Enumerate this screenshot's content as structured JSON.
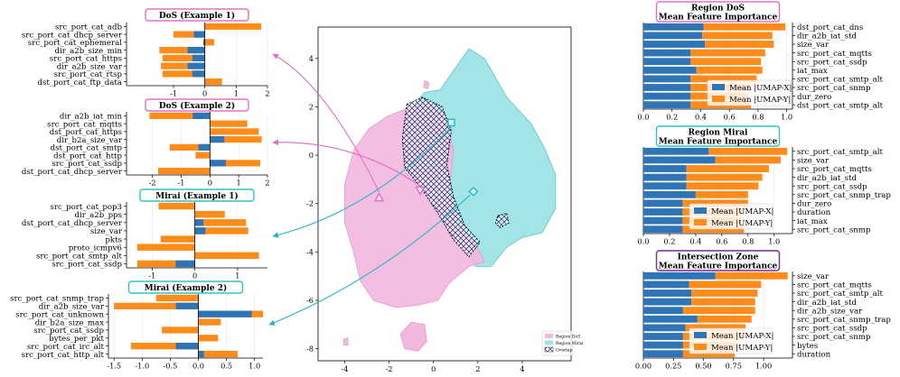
{
  "colors": {
    "umap_x": "#2f75b5",
    "umap_y": "#ff8c1a",
    "dos_border": "#e070c8",
    "mirai_border": "#2fc3c8",
    "intersection_border": "#7a2a8a",
    "region_dos_fill": "#f2b8de",
    "region_mirai_fill": "#9ee4e6",
    "overlap_hatch": "#1a2a6a",
    "arrow_dos": "#e070c8",
    "arrow_mirai": "#22b8c4"
  },
  "chart_data": [
    {
      "type": "bar",
      "orientation": "horizontal",
      "stacked": true,
      "title": "DoS (Example 1)",
      "categories": [
        "src_port_cat_adb",
        "src_port_cat_dhcp_server",
        "src_port_cat_ephemeral",
        "dir_a2b_size_min",
        "src_port_cat_https",
        "dir_a2b_size_var",
        "src_port_cat_rtsp",
        "dst_port_cat_ftp_data"
      ],
      "series": [
        {
          "values": [
            0.0,
            -0.35,
            -0.05,
            -0.55,
            -0.4,
            -0.55,
            -0.4,
            0.0
          ]
        },
        {
          "values": [
            1.8,
            -0.65,
            0.35,
            -0.9,
            -0.95,
            -0.85,
            -0.95,
            0.55
          ]
        }
      ],
      "xlim": [
        -2.5,
        2.0
      ],
      "xticks": [
        "-1",
        "0",
        "1",
        "2"
      ],
      "xtick_values": [
        -1,
        0,
        1,
        2
      ]
    },
    {
      "type": "bar",
      "orientation": "horizontal",
      "stacked": true,
      "title": "DoS (Example 2)",
      "categories": [
        "dir_a2b_iat_min",
        "src_port_cat_mqtts",
        "dst_port_cat_https",
        "dir_b2a_size_var",
        "dst_port_cat_smtp",
        "dst_port_cat_http",
        "src_port_cat_ssdp",
        "dst_port_cat_dhcp_server"
      ],
      "series": [
        {
          "values": [
            -0.6,
            0.0,
            0.0,
            0.5,
            -0.4,
            0.0,
            0.55,
            0.0
          ]
        },
        {
          "values": [
            -1.5,
            1.3,
            1.7,
            1.3,
            -1.0,
            -0.5,
            1.2,
            -1.8
          ]
        }
      ],
      "xlim": [
        -2.9,
        2.0
      ],
      "xticks": [
        "-2",
        "-1",
        "0",
        "1",
        "2"
      ],
      "xtick_values": [
        -2,
        -1,
        0,
        1,
        2
      ]
    },
    {
      "type": "bar",
      "orientation": "horizontal",
      "stacked": true,
      "title": "Mirai (Example 1)",
      "categories": [
        "src_port_cat_pop3",
        "dir_a2b_pps",
        "dst_port_cat_dhcp_server",
        "size_var",
        "pkts",
        "proto_icmpv6",
        "src_port_cat_smtp_alt",
        "src_port_cat_ssdp"
      ],
      "series": [
        {
          "values": [
            0.0,
            0.0,
            0.2,
            0.25,
            0.0,
            0.0,
            0.0,
            -0.45
          ]
        },
        {
          "values": [
            -0.85,
            0.7,
            1.0,
            1.0,
            -0.8,
            -1.35,
            1.5,
            -0.9
          ]
        }
      ],
      "xlim": [
        -1.6,
        1.7
      ],
      "xticks": [
        "-1",
        "0",
        "1"
      ],
      "xtick_values": [
        -1,
        0,
        1
      ]
    },
    {
      "type": "bar",
      "orientation": "horizontal",
      "stacked": true,
      "title": "Mirai (Example 2)",
      "categories": [
        "src_port_cat_snmp_trap",
        "dir_a2b_size_var",
        "src_port_cat_unknown",
        "dir_b2a_size_max",
        "src_port_cat_ssdp",
        "bytes_per_pkt",
        "src_port_cat_irc_alt",
        "src_port_cat_http_alt"
      ],
      "series": [
        {
          "values": [
            0.0,
            -0.4,
            0.95,
            0.0,
            0.0,
            0.0,
            -0.4,
            0.1
          ]
        },
        {
          "values": [
            -0.75,
            -1.1,
            0.2,
            0.4,
            -0.65,
            0.35,
            -0.8,
            0.6
          ]
        }
      ],
      "xlim": [
        -1.6,
        1.15
      ],
      "xticks": [
        "-1.5",
        "-1.0",
        "-0.5",
        "0.0",
        "0.5",
        "1.0"
      ],
      "xtick_values": [
        -1.5,
        -1.0,
        -0.5,
        0.0,
        0.5,
        1.0
      ]
    },
    {
      "type": "scatter",
      "xlim": [
        -5.2,
        6.2
      ],
      "ylim": [
        -8.5,
        5.3
      ],
      "xticks": [
        "-4",
        "-2",
        "0",
        "2",
        "4"
      ],
      "xtick_values": [
        -4,
        -2,
        0,
        2,
        4
      ],
      "yticks": [
        "4",
        "2",
        "0",
        "-2",
        "-4",
        "-6",
        "-8"
      ],
      "ytick_values": [
        4,
        2,
        0,
        -2,
        -4,
        -6,
        -8
      ],
      "markers": [
        {
          "kind": "triangle",
          "x": -2.45,
          "y": -1.75,
          "color": "#e070c8"
        },
        {
          "kind": "triangle_down",
          "x": -0.6,
          "y": -1.45,
          "color": "#e070c8"
        },
        {
          "kind": "square",
          "x": 0.8,
          "y": 1.35,
          "color": "#22b8c4"
        },
        {
          "kind": "diamond",
          "x": 1.8,
          "y": -1.5,
          "color": "#22b8c4"
        }
      ],
      "legend": [
        "Region DoS",
        "Region Mirai",
        "Overlap"
      ],
      "legend_position": "lower-right"
    },
    {
      "type": "bar",
      "orientation": "horizontal",
      "stacked": true,
      "title": [
        "Region DoS",
        "Mean Feature Importance"
      ],
      "categories": [
        "dst_port_cat_dns",
        "dir_a2b_iat_std",
        "size_var",
        "src_port_cat_mqtts",
        "src_port_cat_ssdp",
        "iat_max",
        "src_port_cat_smtp_alt",
        "src_port_cat_snmp",
        "dur_zero",
        "dst_port_cat_smtp_alt"
      ],
      "series": [
        {
          "name": "Mean |UMAP-X|",
          "values": [
            0.42,
            0.41,
            0.43,
            0.33,
            0.33,
            0.37,
            0.33,
            0.33,
            0.33,
            0.33
          ]
        },
        {
          "name": "Mean |UMAP-Y|",
          "values": [
            0.57,
            0.49,
            0.48,
            0.52,
            0.49,
            0.46,
            0.46,
            0.42,
            0.4,
            0.42
          ]
        }
      ],
      "xlim": [
        0.0,
        1.04
      ],
      "xticks": [
        "0.0",
        "0.2",
        "0.4",
        "0.6",
        "0.8",
        "1.0"
      ],
      "xtick_values": [
        0.0,
        0.2,
        0.4,
        0.6,
        0.8,
        1.0
      ],
      "legend_position": "lower-right"
    },
    {
      "type": "bar",
      "orientation": "horizontal",
      "stacked": true,
      "title": [
        "Region Mirai",
        "Mean Feature Importance"
      ],
      "categories": [
        "src_port_cat_smtp_alt",
        "size_var",
        "src_port_cat_mqtts",
        "dir_a2b_iat_std",
        "src_port_cat_ssdp",
        "src_port_cat_snmp_trap",
        "dur_zero",
        "duration",
        "iat_max",
        "src_port_cat_snmp"
      ],
      "series": [
        {
          "name": "Mean |UMAP-X|",
          "values": [
            0.5,
            0.55,
            0.33,
            0.33,
            0.33,
            0.4,
            0.3,
            0.3,
            0.3,
            0.3
          ]
        },
        {
          "name": "Mean |UMAP-Y|",
          "values": [
            0.6,
            0.5,
            0.63,
            0.58,
            0.55,
            0.4,
            0.5,
            0.47,
            0.45,
            0.47
          ]
        }
      ],
      "xlim": [
        0.0,
        1.14
      ],
      "xticks": [
        "0.0",
        "0.2",
        "0.4",
        "0.6",
        "0.8",
        "1.0"
      ],
      "xtick_values": [
        0.0,
        0.2,
        0.4,
        0.6,
        0.8,
        1.0
      ],
      "legend_position": "lower-right"
    },
    {
      "type": "bar",
      "orientation": "horizontal",
      "stacked": true,
      "title": [
        "Intersection Zone",
        "Mean Feature Importance"
      ],
      "categories": [
        "size_var",
        "src_port_cat_mqtts",
        "src_port_cat_smtp_alt",
        "dir_a2b_iat_std",
        "dir_a2b_size_var",
        "src_port_cat_snmp_trap",
        "src_port_cat_ssdp",
        "src_port_cat_snmp",
        "bytes",
        "duration"
      ],
      "series": [
        {
          "name": "Mean |UMAP-X|",
          "values": [
            0.6,
            0.38,
            0.4,
            0.4,
            0.33,
            0.45,
            0.35,
            0.33,
            0.33,
            0.33
          ]
        },
        {
          "name": "Mean |UMAP-Y|",
          "values": [
            0.6,
            0.6,
            0.55,
            0.53,
            0.6,
            0.45,
            0.5,
            0.5,
            0.45,
            0.43
          ]
        }
      ],
      "xlim": [
        0.0,
        1.24
      ],
      "xticks": [
        "0.00",
        "0.25",
        "0.50",
        "0.75",
        "1.00"
      ],
      "xtick_values": [
        0.0,
        0.25,
        0.5,
        0.75,
        1.0
      ],
      "legend_position": "lower-right"
    }
  ]
}
